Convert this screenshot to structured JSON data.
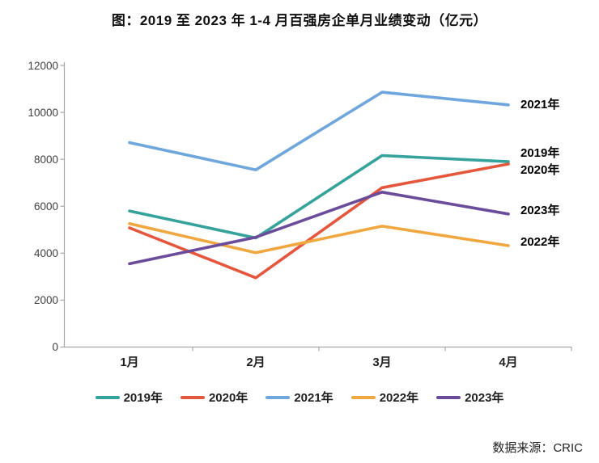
{
  "title": "图：2019 至 2023 年 1-4 月百强房企单月业绩变动（亿元）",
  "source": "数据来源：CRIC",
  "chart_data": {
    "type": "line",
    "title": "图：2019 至 2023 年 1-4 月百强房企单月业绩变动（亿元）",
    "categories": [
      "1月",
      "2月",
      "3月",
      "4月"
    ],
    "series": [
      {
        "name": "2019年",
        "color": "#35A29B",
        "values": [
          5800,
          4650,
          8160,
          7900
        ]
      },
      {
        "name": "2020年",
        "color": "#E4573D",
        "values": [
          5080,
          2950,
          6790,
          7800
        ]
      },
      {
        "name": "2021年",
        "color": "#6FA7DC",
        "values": [
          8710,
          7550,
          10860,
          10320
        ]
      },
      {
        "name": "2022年",
        "color": "#F0A73F",
        "values": [
          5260,
          4020,
          5150,
          4320
        ]
      },
      {
        "name": "2023年",
        "color": "#6A4C9B",
        "values": [
          3550,
          4680,
          6600,
          5670
        ]
      }
    ],
    "ylim": [
      0,
      12000
    ],
    "ytick_labels": [
      "0",
      "2000",
      "4000",
      "6000",
      "8000",
      "10000",
      "12000"
    ],
    "xlabel": "",
    "ylabel": "",
    "grid": false,
    "legend_position": "bottom",
    "end_labels_order_top_to_bottom": [
      "2021年",
      "2019年",
      "2020年",
      "2023年",
      "2022年"
    ],
    "axis_color": "#A6A6A6"
  }
}
